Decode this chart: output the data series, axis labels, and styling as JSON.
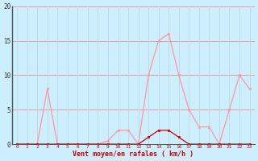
{
  "x": [
    0,
    1,
    2,
    3,
    4,
    5,
    6,
    7,
    8,
    9,
    10,
    11,
    12,
    13,
    14,
    15,
    16,
    17,
    18,
    19,
    20,
    21,
    22,
    23
  ],
  "rafales": [
    0,
    0,
    0,
    8,
    0,
    0,
    0,
    0,
    0,
    0.5,
    2,
    2,
    0,
    10,
    15,
    16,
    10,
    5,
    2.5,
    2.5,
    0,
    5,
    10,
    8
  ],
  "moyen": [
    0,
    0,
    0,
    0,
    0,
    0,
    0,
    0,
    0,
    0,
    0,
    0,
    0,
    1,
    2,
    2,
    1,
    0,
    0,
    0,
    0,
    0,
    0,
    0
  ],
  "bg_color": "#cceeff",
  "grid_color_h": "#ee9999",
  "grid_color_v": "#bbdddd",
  "line_color_rafales": "#ff9999",
  "line_color_moyen": "#cc0000",
  "xlabel": "Vent moyen/en rafales ( km/h )",
  "ylim": [
    0,
    20
  ],
  "xlim": [
    -0.5,
    23.5
  ],
  "yticks": [
    0,
    5,
    10,
    15,
    20
  ],
  "xticks": [
    0,
    1,
    2,
    3,
    4,
    5,
    6,
    7,
    8,
    9,
    10,
    11,
    12,
    13,
    14,
    15,
    16,
    17,
    18,
    19,
    20,
    21,
    22,
    23
  ]
}
